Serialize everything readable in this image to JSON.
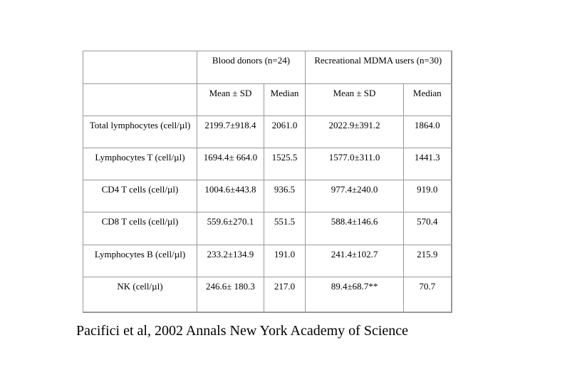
{
  "table": {
    "groups": [
      {
        "label": "Blood donors (n=24)"
      },
      {
        "label": "Recreational MDMA users (n=30)"
      }
    ],
    "sub_headers": [
      "Mean ± SD",
      "Median",
      "Mean ± SD",
      "Median"
    ],
    "rows": [
      {
        "label": "Total lymphocytes (cell/µl)",
        "blood_mean_sd": "2199.7±918.4",
        "blood_median": "2061.0",
        "mdma_mean_sd": "2022.9±391.2",
        "mdma_median": "1864.0"
      },
      {
        "label": "Lymphocytes T (cell/µl)",
        "blood_mean_sd": "1694.4± 664.0",
        "blood_median": "1525.5",
        "mdma_mean_sd": "1577.0±311.0",
        "mdma_median": "1441.3"
      },
      {
        "label": "CD4 T cells (cell/µl)",
        "blood_mean_sd": "1004.6±443.8",
        "blood_median": "936.5",
        "mdma_mean_sd": "977.4±240.0",
        "mdma_median": "919.0"
      },
      {
        "label": "CD8 T cells (cell/µl)",
        "blood_mean_sd": "559.6±270.1",
        "blood_median": "551.5",
        "mdma_mean_sd": "588.4±146.6",
        "mdma_median": "570.4"
      },
      {
        "label": "Lymphocytes B (cell/µl)",
        "blood_mean_sd": "233.2±134.9",
        "blood_median": "191.0",
        "mdma_mean_sd": "241.4±102.7",
        "mdma_median": "215.9"
      },
      {
        "label": "NK (cell/µl)",
        "blood_mean_sd": "246.6± 180.3",
        "blood_median": "217.0",
        "mdma_mean_sd": "89.4±68.7**",
        "mdma_median": "70.7"
      }
    ]
  },
  "caption": "Pacifici et al, 2002 Annals New York Academy of Science",
  "colors": {
    "border": "#999999",
    "text": "#000000",
    "background": "#ffffff"
  }
}
